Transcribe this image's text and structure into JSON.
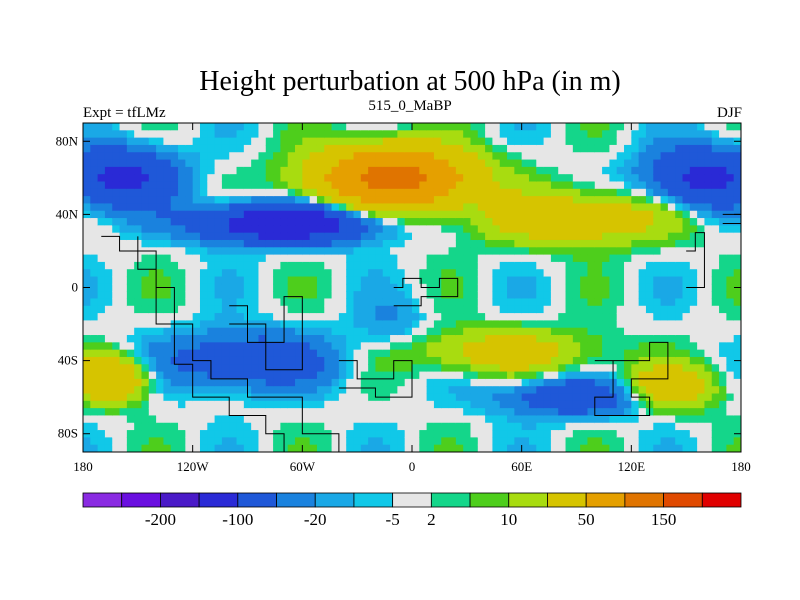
{
  "chart_data": {
    "type": "heatmap",
    "title": "Height perturbation at 500 hPa (in m)",
    "left_label": "Expt = tfLMz",
    "center_label": "515_0_MaBP",
    "right_label": "DJF",
    "x_range": [
      -180,
      180
    ],
    "y_range": [
      -90,
      90
    ],
    "x_ticks": [
      {
        "value": -180,
        "label": "180"
      },
      {
        "value": -120,
        "label": "120W"
      },
      {
        "value": -60,
        "label": "60W"
      },
      {
        "value": 0,
        "label": "0"
      },
      {
        "value": 60,
        "label": "60E"
      },
      {
        "value": 120,
        "label": "120E"
      },
      {
        "value": 180,
        "label": "180"
      }
    ],
    "y_ticks": [
      {
        "value": 80,
        "label": "80N"
      },
      {
        "value": 40,
        "label": "40N"
      },
      {
        "value": 0,
        "label": "0"
      },
      {
        "value": -40,
        "label": "40S"
      },
      {
        "value": -80,
        "label": "80S"
      }
    ],
    "colorbar": {
      "colors": [
        "#8a2be2",
        "#6a0fe0",
        "#4a1ac8",
        "#2a2ad6",
        "#1f58d8",
        "#1a82de",
        "#1aa8e6",
        "#11c8e8",
        "#e6e6e6",
        "#14d68a",
        "#4ece1c",
        "#a8dc10",
        "#d6c400",
        "#e5a000",
        "#e07400",
        "#e04a00",
        "#e00000"
      ],
      "labels": [
        {
          "after_index": 1,
          "text": "-200"
        },
        {
          "after_index": 3,
          "text": "-100"
        },
        {
          "after_index": 5,
          "text": "-20"
        },
        {
          "after_index": 7,
          "text": "-5"
        },
        {
          "after_index": 8,
          "text": "2"
        },
        {
          "after_index": 10,
          "text": "10"
        },
        {
          "after_index": 12,
          "text": "50"
        },
        {
          "after_index": 14,
          "text": "150"
        }
      ]
    },
    "field_features": [
      {
        "lon": -160,
        "lat": 60,
        "amp": -60,
        "slon": 30,
        "slat": 16
      },
      {
        "lon": 160,
        "lat": 60,
        "amp": -60,
        "slon": 30,
        "slat": 16
      },
      {
        "lon": -10,
        "lat": 60,
        "amp": 120,
        "slon": 40,
        "slat": 16
      },
      {
        "lon": -70,
        "lat": 35,
        "amp": -90,
        "slon": 45,
        "slat": 10
      },
      {
        "lon": 90,
        "lat": 38,
        "amp": 40,
        "slon": 50,
        "slat": 14
      },
      {
        "lon": -165,
        "lat": -50,
        "amp": 50,
        "slon": 20,
        "slat": 12
      },
      {
        "lon": -90,
        "lat": -40,
        "amp": -40,
        "slon": 45,
        "slat": 15
      },
      {
        "lon": 50,
        "lat": -35,
        "amp": 30,
        "slon": 50,
        "slat": 12
      },
      {
        "lon": 140,
        "lat": -55,
        "amp": 40,
        "slon": 25,
        "slat": 12
      },
      {
        "lon": -10,
        "lat": -20,
        "amp": -10,
        "slon": 20,
        "slat": 15
      },
      {
        "lon": 90,
        "lat": -60,
        "amp": -40,
        "slon": 40,
        "slat": 10
      }
    ],
    "land_outlines": [
      [
        [
          -170,
          28
        ],
        [
          -160,
          28
        ],
        [
          -160,
          20
        ],
        [
          -150,
          20
        ],
        [
          -150,
          10
        ],
        [
          -140,
          10
        ],
        [
          -140,
          -20
        ],
        [
          -130,
          -20
        ],
        [
          -130,
          -42
        ],
        [
          -120,
          -42
        ],
        [
          -120,
          -60
        ],
        [
          -100,
          -60
        ],
        [
          -100,
          -70
        ],
        [
          -80,
          -70
        ],
        [
          -80,
          -80
        ],
        [
          -70,
          -80
        ],
        [
          -70,
          -90
        ],
        [
          -40,
          -90
        ],
        [
          -40,
          -80
        ],
        [
          -60,
          -80
        ],
        [
          -60,
          -60
        ],
        [
          -90,
          -60
        ],
        [
          -90,
          -50
        ],
        [
          -110,
          -50
        ],
        [
          -110,
          -40
        ],
        [
          -120,
          -40
        ],
        [
          -120,
          -20
        ],
        [
          -130,
          -20
        ],
        [
          -130,
          0
        ],
        [
          -140,
          0
        ],
        [
          -140,
          20
        ],
        [
          -150,
          20
        ],
        [
          -150,
          28
        ]
      ],
      [
        [
          -100,
          -10
        ],
        [
          -90,
          -10
        ],
        [
          -90,
          -20
        ],
        [
          -80,
          -20
        ],
        [
          -80,
          -30
        ],
        [
          -70,
          -30
        ],
        [
          -70,
          -5
        ],
        [
          -60,
          -5
        ],
        [
          -60,
          -45
        ],
        [
          -80,
          -45
        ],
        [
          -80,
          -30
        ],
        [
          -90,
          -30
        ],
        [
          -90,
          -20
        ],
        [
          -100,
          -20
        ]
      ],
      [
        [
          -40,
          -40
        ],
        [
          -30,
          -40
        ],
        [
          -30,
          -50
        ],
        [
          -10,
          -50
        ],
        [
          -10,
          -40
        ],
        [
          0,
          -40
        ],
        [
          0,
          -60
        ],
        [
          -20,
          -60
        ],
        [
          -20,
          -55
        ],
        [
          -40,
          -55
        ]
      ],
      [
        [
          -10,
          0
        ],
        [
          -5,
          0
        ],
        [
          -5,
          5
        ],
        [
          5,
          5
        ],
        [
          5,
          0
        ],
        [
          15,
          0
        ],
        [
          15,
          5
        ],
        [
          25,
          5
        ],
        [
          25,
          -5
        ],
        [
          5,
          -5
        ],
        [
          5,
          -10
        ],
        [
          -10,
          -10
        ]
      ],
      [
        [
          100,
          -40
        ],
        [
          130,
          -40
        ],
        [
          130,
          -30
        ],
        [
          140,
          -30
        ],
        [
          140,
          -50
        ],
        [
          120,
          -50
        ],
        [
          120,
          -60
        ],
        [
          130,
          -60
        ],
        [
          130,
          -70
        ],
        [
          100,
          -70
        ],
        [
          100,
          -60
        ],
        [
          110,
          -60
        ],
        [
          110,
          -40
        ]
      ],
      [
        [
          150,
          20
        ],
        [
          155,
          20
        ],
        [
          155,
          30
        ],
        [
          160,
          30
        ],
        [
          160,
          0
        ],
        [
          150,
          0
        ]
      ],
      [
        [
          170,
          40
        ],
        [
          180,
          40
        ],
        [
          180,
          35
        ],
        [
          170,
          35
        ]
      ]
    ]
  }
}
